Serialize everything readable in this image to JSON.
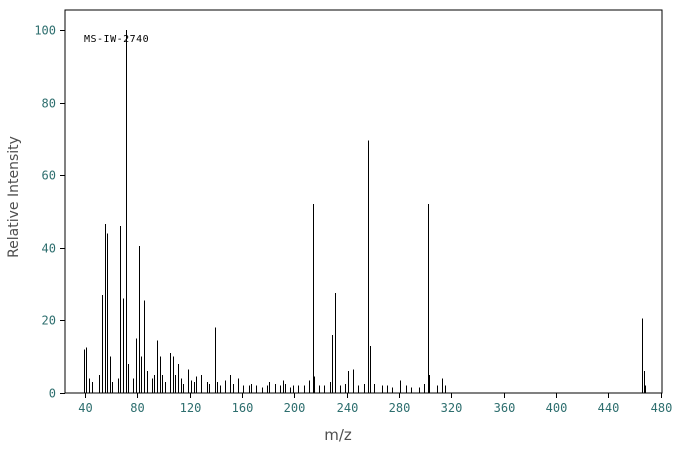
{
  "page": {
    "background": "#ffffff"
  },
  "chart_data": {
    "type": "bar",
    "subtype": "mass-spectrum-stick-plot",
    "annotation": "MS-IW-2740",
    "title": "",
    "xlabel": "m/z",
    "ylabel": "Relative Intensity",
    "xlim": [
      24.7,
      481
    ],
    "ylim": [
      0,
      105.5
    ],
    "x_ticks": [
      40,
      80,
      120,
      160,
      200,
      240,
      280,
      320,
      360,
      400,
      440,
      480
    ],
    "y_ticks": [
      0,
      20,
      40,
      60,
      80,
      100
    ],
    "grid": false,
    "legend": false,
    "colors": {
      "peak": "#000000",
      "frame": "#000000",
      "tick_label": "#2d6e6e",
      "axis_label": "#4f4f4f",
      "annotation": "#000000",
      "background": "#ffffff"
    },
    "peaks": [
      [
        39,
        12
      ],
      [
        41,
        12.5
      ],
      [
        43,
        4
      ],
      [
        45,
        3
      ],
      [
        51,
        5
      ],
      [
        53,
        27
      ],
      [
        55,
        46.5
      ],
      [
        57,
        44
      ],
      [
        59,
        10
      ],
      [
        61,
        3
      ],
      [
        65,
        4
      ],
      [
        67,
        46
      ],
      [
        69,
        26
      ],
      [
        71,
        100
      ],
      [
        73,
        8
      ],
      [
        77,
        4
      ],
      [
        79,
        15
      ],
      [
        81,
        40.5
      ],
      [
        83,
        10
      ],
      [
        85,
        25.5
      ],
      [
        87,
        6
      ],
      [
        91,
        4
      ],
      [
        93,
        5
      ],
      [
        95,
        14.5
      ],
      [
        97,
        10
      ],
      [
        99,
        5
      ],
      [
        101,
        3
      ],
      [
        105,
        11
      ],
      [
        107,
        10
      ],
      [
        109,
        5
      ],
      [
        111,
        8
      ],
      [
        113,
        4
      ],
      [
        115,
        2.5
      ],
      [
        119,
        6.5
      ],
      [
        121,
        3.5
      ],
      [
        123,
        3
      ],
      [
        125,
        4.5
      ],
      [
        129,
        5
      ],
      [
        133,
        3
      ],
      [
        135,
        2.5
      ],
      [
        139,
        18
      ],
      [
        141,
        3
      ],
      [
        143,
        2
      ],
      [
        147,
        3.5
      ],
      [
        151,
        5
      ],
      [
        153,
        2.5
      ],
      [
        157,
        4
      ],
      [
        161,
        2
      ],
      [
        165,
        2
      ],
      [
        167,
        2.5
      ],
      [
        171,
        2
      ],
      [
        175,
        1.5
      ],
      [
        179,
        2
      ],
      [
        181,
        3
      ],
      [
        185,
        2.5
      ],
      [
        189,
        2
      ],
      [
        191,
        3.5
      ],
      [
        193,
        2.5
      ],
      [
        197,
        1.5
      ],
      [
        199,
        2
      ],
      [
        203,
        2
      ],
      [
        207,
        2
      ],
      [
        211,
        3.5
      ],
      [
        214,
        52
      ],
      [
        215,
        4.5
      ],
      [
        219,
        2
      ],
      [
        223,
        2
      ],
      [
        227,
        3
      ],
      [
        229,
        16
      ],
      [
        231,
        27.5
      ],
      [
        235,
        2
      ],
      [
        239,
        2.5
      ],
      [
        241,
        6
      ],
      [
        245,
        6.5
      ],
      [
        249,
        2
      ],
      [
        253,
        2.5
      ],
      [
        256,
        69.5
      ],
      [
        258,
        13
      ],
      [
        261,
        2.5
      ],
      [
        267,
        2
      ],
      [
        271,
        2
      ],
      [
        275,
        1.5
      ],
      [
        281,
        3.5
      ],
      [
        285,
        2
      ],
      [
        289,
        1.5
      ],
      [
        295,
        1.5
      ],
      [
        299,
        2.5
      ],
      [
        302,
        52
      ],
      [
        303,
        5
      ],
      [
        309,
        2
      ],
      [
        313,
        4
      ],
      [
        315,
        2
      ],
      [
        466,
        20.5
      ],
      [
        467,
        6
      ],
      [
        468,
        2
      ]
    ]
  }
}
